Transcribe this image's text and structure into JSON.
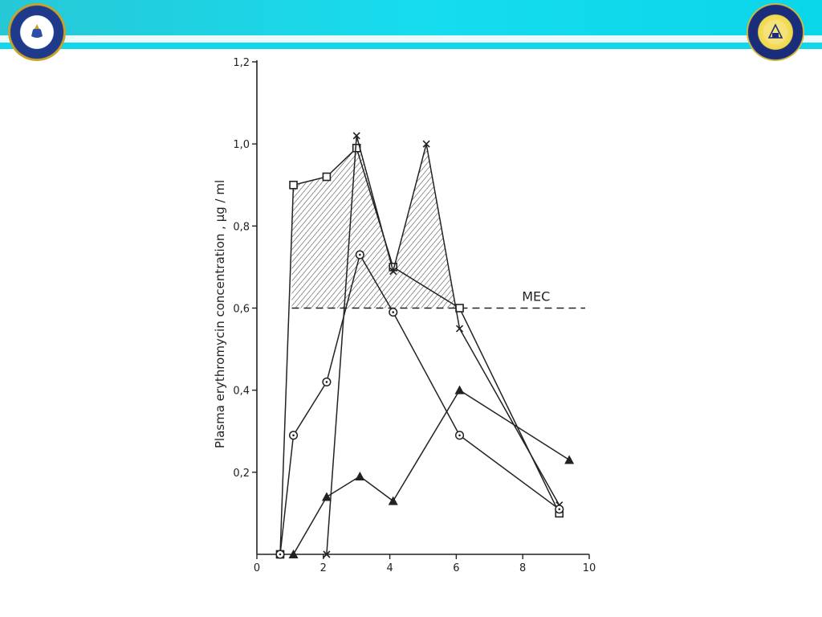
{
  "colors": {
    "banner": "#16dcee",
    "ink": "#222222",
    "shade": "#444444"
  },
  "logos": {
    "left": "university-seal-left-icon",
    "right": "university-seal-right-icon"
  },
  "chart_data": {
    "type": "line",
    "title": "",
    "xlabel": "",
    "ylabel": "Plasma erythromycin concentration , μg / ml",
    "xlim": [
      0,
      10
    ],
    "ylim": [
      0,
      1.2
    ],
    "x_ticks": [
      "0",
      "2",
      "4",
      "6",
      "8",
      "10"
    ],
    "y_ticks": [
      "0,2",
      "0,4",
      "0,6",
      "0,8",
      "1,0",
      "1,2"
    ],
    "grid": false,
    "threshold": {
      "label": "MEC",
      "value": 0.6,
      "style": "dashed"
    },
    "shaded_region": "area between series above the MEC line",
    "series": [
      {
        "marker": "square",
        "x": [
          0.7,
          1.1,
          2.1,
          3.0,
          4.1,
          6.1,
          9.1
        ],
        "y": [
          0.0,
          0.9,
          0.92,
          0.99,
          0.7,
          0.6,
          0.1
        ]
      },
      {
        "marker": "cross",
        "x": [
          2.1,
          3.0,
          4.1,
          5.1,
          6.1,
          9.1
        ],
        "y": [
          0.0,
          1.02,
          0.69,
          1.0,
          0.55,
          0.12
        ]
      },
      {
        "marker": "circle",
        "x": [
          0.7,
          1.1,
          2.1,
          3.1,
          4.1,
          6.1,
          9.1
        ],
        "y": [
          0.0,
          0.29,
          0.42,
          0.73,
          0.59,
          0.29,
          0.11
        ]
      },
      {
        "marker": "triangle",
        "x": [
          1.1,
          2.1,
          3.1,
          4.1,
          6.1,
          9.4
        ],
        "y": [
          0.0,
          0.14,
          0.19,
          0.13,
          0.4,
          0.23
        ]
      }
    ]
  }
}
